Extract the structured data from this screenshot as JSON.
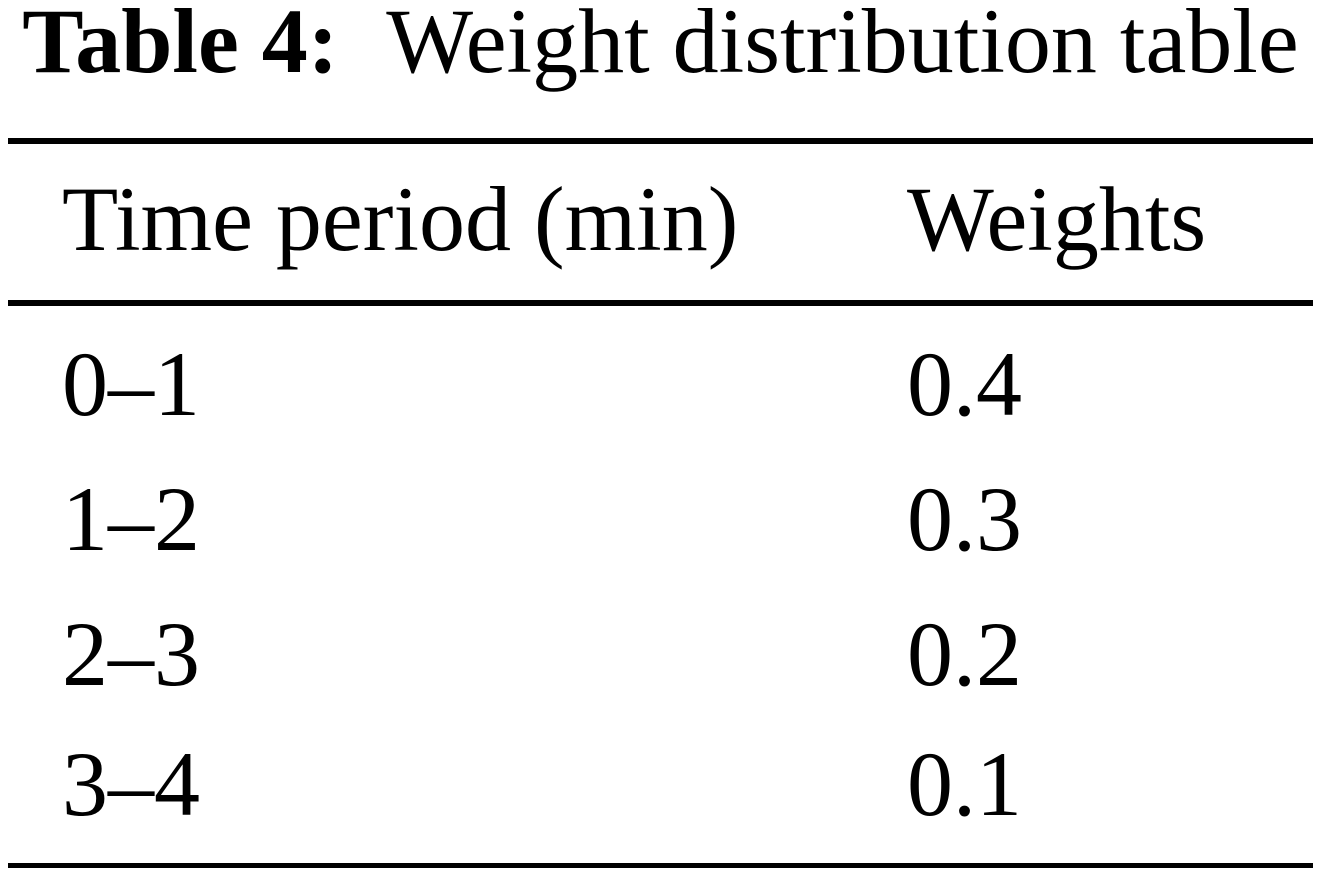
{
  "page": {
    "background_color": "#ffffff",
    "text_color": "#000000"
  },
  "caption": {
    "label": "Table 4:",
    "title": "Weight distribution table"
  },
  "table": {
    "headers": [
      "Time period (min)",
      "Weights"
    ],
    "rows": [
      {
        "period": "0–1",
        "weight": "0.4"
      },
      {
        "period": "1–2",
        "weight": "0.3"
      },
      {
        "period": "2–3",
        "weight": "0.2"
      },
      {
        "period": "3–4",
        "weight": "0.1"
      }
    ]
  },
  "chart_data": {
    "type": "table",
    "title": "Table 4: Weight distribution table",
    "columns": [
      "Time period (min)",
      "Weights"
    ],
    "categories": [
      "0–1",
      "1–2",
      "2–3",
      "3–4"
    ],
    "values": [
      0.4,
      0.3,
      0.2,
      0.1
    ]
  }
}
